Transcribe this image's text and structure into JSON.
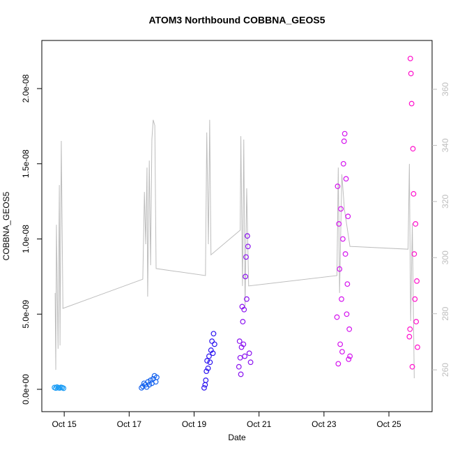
{
  "chart_data": {
    "type": "scatter",
    "title": "ATOM3 Northbound COBBNA_GEOS5",
    "xlabel": "Date",
    "ylabel": "COBBNA_GEOS5",
    "xlim": [
      14.31,
      26.33
    ],
    "xticks": [
      {
        "value": 15,
        "label": "Oct 15"
      },
      {
        "value": 17,
        "label": "Oct 17"
      },
      {
        "value": 19,
        "label": "Oct 19"
      },
      {
        "value": 21,
        "label": "Oct 21"
      },
      {
        "value": 23,
        "label": "Oct 23"
      },
      {
        "value": 25,
        "label": "Oct 25"
      }
    ],
    "ylim": [
      -1.485e-09,
      2.32e-08
    ],
    "yticks": [
      {
        "value": 0,
        "label": "0.0e+00"
      },
      {
        "value": 5e-09,
        "label": "5.0e-09"
      },
      {
        "value": 1e-08,
        "label": "1.0e-08"
      },
      {
        "value": 1.5e-08,
        "label": "1.5e-08"
      },
      {
        "value": 2e-08,
        "label": "2.0e-08"
      }
    ],
    "y2lim": [
      245.1,
      377.4
    ],
    "y2ticks": [
      260,
      280,
      300,
      320,
      340,
      360
    ],
    "y2color": "#bdbdbd",
    "series": [
      {
        "type": "line",
        "axis": "y2",
        "color": "#bdbdbd",
        "x": [
          14.72,
          14.74,
          14.76,
          14.81,
          14.85,
          14.87,
          14.91,
          14.96,
          17.42,
          17.47,
          17.51,
          17.55,
          17.57,
          17.62,
          17.66,
          17.7,
          17.74,
          17.79,
          17.83,
          19.35,
          19.39,
          19.44,
          19.48,
          19.52,
          20.42,
          20.44,
          20.49,
          20.53,
          20.57,
          20.62,
          20.68,
          23.4,
          23.44,
          23.48,
          23.55,
          23.63,
          23.8,
          25.59,
          25.63,
          25.67,
          25.72,
          25.78
        ],
        "values": [
          287.4,
          260,
          311.7,
          267.5,
          325.9,
          268.7,
          341.6,
          281.9,
          292.3,
          323.4,
          304.8,
          332.1,
          286.1,
          334.6,
          297.3,
          342.1,
          349.1,
          347.1,
          296.1,
          293.6,
          344.6,
          304.8,
          349.1,
          301.0,
          309.8,
          343.3,
          289.9,
          342.1,
          282.4,
          324.7,
          289.9,
          293.6,
          332.1,
          287.4,
          329.7,
          317.2,
          304.0,
          303.0,
          333.4,
          277.4,
          312.2,
          257.0
        ]
      },
      {
        "color": "#1a9cf5",
        "x": [
          14.7,
          14.74,
          14.78,
          14.82,
          14.86,
          14.9,
          14.94,
          14.98
        ],
        "values": [
          1.2e-10,
          8e-11,
          1.5e-10,
          1e-10,
          9e-11,
          1.3e-10,
          1.1e-10,
          7e-11
        ]
      },
      {
        "color": "#1462ee",
        "x": [
          17.38,
          17.42,
          17.46,
          17.5,
          17.54,
          17.58,
          17.62,
          17.66,
          17.7,
          17.74,
          17.78,
          17.82,
          17.85
        ],
        "values": [
          1e-10,
          2e-10,
          4e-10,
          3e-10,
          1.5e-10,
          5e-10,
          3e-10,
          6e-10,
          4e-10,
          7e-10,
          9e-10,
          5e-10,
          8e-10
        ]
      },
      {
        "color": "#2a12f0",
        "x": [
          19.31,
          19.34,
          19.36,
          19.38,
          19.4,
          19.43,
          19.46,
          19.49,
          19.52,
          19.55,
          19.58,
          19.6,
          19.63
        ],
        "values": [
          1e-10,
          3e-10,
          6e-10,
          1.2e-09,
          1.9e-09,
          1.4e-09,
          2.2e-09,
          1.8e-09,
          2.6e-09,
          3.2e-09,
          2.4e-09,
          3.7e-09,
          3e-09
        ]
      },
      {
        "color": "#8a12f0",
        "x": [
          20.38,
          20.4,
          20.42,
          20.44,
          20.46,
          20.48,
          20.5,
          20.52,
          20.54,
          20.56,
          20.58,
          20.6,
          20.62,
          20.64,
          20.66,
          20.7,
          20.74
        ],
        "values": [
          1.5e-09,
          3.2e-09,
          2.1e-09,
          1e-09,
          2.8e-09,
          5.5e-09,
          4.5e-09,
          3e-09,
          5.3e-09,
          2.2e-09,
          7.5e-09,
          8.8e-09,
          6e-09,
          1.02e-08,
          9.5e-09,
          2.4e-09,
          1.8e-09
        ]
      },
      {
        "color": "#d412ee",
        "x": [
          23.4,
          23.42,
          23.44,
          23.46,
          23.48,
          23.5,
          23.52,
          23.54,
          23.56,
          23.58,
          23.6,
          23.62,
          23.64,
          23.66,
          23.68,
          23.7,
          23.72,
          23.74,
          23.76,
          23.78,
          23.8
        ],
        "values": [
          4.8e-09,
          1.35e-08,
          1.7e-09,
          1.1e-08,
          8e-09,
          3e-09,
          1.2e-08,
          6e-09,
          2.5e-09,
          1e-08,
          1.5e-08,
          1.65e-08,
          1.7e-08,
          9e-09,
          1.4e-08,
          5e-09,
          7e-09,
          1.15e-08,
          2e-09,
          4e-09,
          2.2e-09
        ]
      },
      {
        "color": "#ff10cc",
        "x": [
          25.63,
          25.65,
          25.66,
          25.68,
          25.7,
          25.72,
          25.74,
          25.76,
          25.78,
          25.8,
          25.82,
          25.84,
          25.86,
          25.88
        ],
        "values": [
          3.5e-09,
          4e-09,
          2.2e-08,
          2.1e-08,
          1.9e-08,
          1.5e-09,
          1.6e-08,
          1.3e-08,
          9e-09,
          6e-09,
          1.1e-08,
          4.5e-09,
          7.2e-09,
          2.8e-09
        ]
      }
    ]
  }
}
